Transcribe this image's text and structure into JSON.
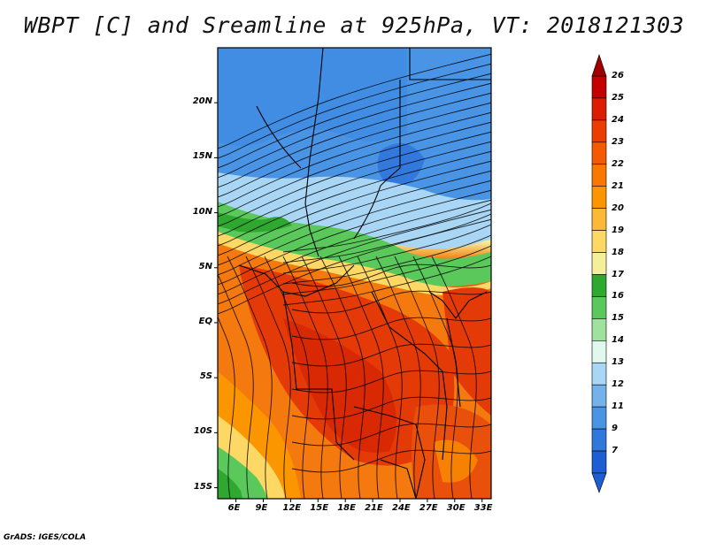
{
  "title": "WBPT [C] and Sreamline at 925hPa, VT: 2018121303",
  "credit": "GrADS: IGES/COLA",
  "map": {
    "lon_range": [
      4,
      34
    ],
    "lat_range": [
      -16,
      25
    ],
    "lat_labels": [
      "20N",
      "15N",
      "10N",
      "5N",
      "EQ",
      "5S",
      "10S",
      "15S"
    ],
    "lat_values": [
      20,
      15,
      10,
      5,
      0,
      -5,
      -10,
      -15
    ],
    "lon_labels": [
      "6E",
      "9E",
      "12E",
      "15E",
      "18E",
      "21E",
      "24E",
      "27E",
      "30E",
      "33E"
    ],
    "lon_values": [
      6,
      9,
      12,
      15,
      18,
      21,
      24,
      27,
      30,
      33
    ]
  },
  "colorbar": {
    "labels": [
      "26",
      "25",
      "24",
      "23",
      "22",
      "21",
      "20",
      "19",
      "18",
      "17",
      "16",
      "15",
      "14",
      "13",
      "12",
      "11",
      "9",
      "7"
    ],
    "colors": [
      "#c40000",
      "#dc1c00",
      "#ec3c00",
      "#f45a00",
      "#fa7800",
      "#fc9600",
      "#feb838",
      "#fed864",
      "#f4f09a",
      "#2ea82e",
      "#5ac85a",
      "#9ee29e",
      "#e0f8ee",
      "#a8d6f4",
      "#74b2ec",
      "#4a94e6",
      "#3078dc",
      "#1f5ed2"
    ]
  }
}
